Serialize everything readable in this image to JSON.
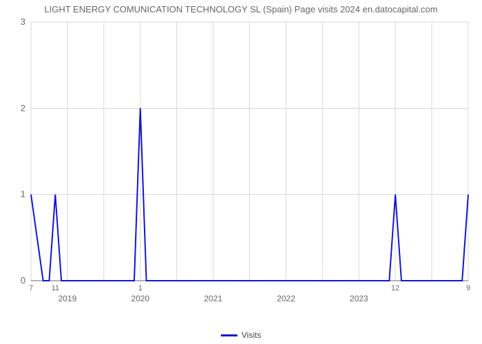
{
  "title": "LIGHT ENERGY COMUNICATION TECHNOLOGY SL (Spain) Page visits 2024 en.datocapital.com",
  "chart": {
    "type": "line",
    "background_color": "#ffffff",
    "grid_color": "#d8d8d8",
    "axis_color": "#666666",
    "series_color": "#1414d2",
    "line_width": 2,
    "ylim": [
      0,
      3
    ],
    "yticks": [
      0,
      1,
      2,
      3
    ],
    "xlim": [
      0,
      72
    ],
    "grid_v_count": 12,
    "minor_xticks": [
      {
        "pos": 0,
        "label": "7"
      },
      {
        "pos": 4,
        "label": "11"
      },
      {
        "pos": 18,
        "label": "1"
      },
      {
        "pos": 60,
        "label": "12"
      },
      {
        "pos": 72,
        "label": "9"
      }
    ],
    "major_xticks": [
      {
        "pos": 6,
        "label": "2019"
      },
      {
        "pos": 18,
        "label": "2020"
      },
      {
        "pos": 30,
        "label": "2021"
      },
      {
        "pos": 42,
        "label": "2022"
      },
      {
        "pos": 54,
        "label": "2023"
      }
    ],
    "points": [
      {
        "x": 0,
        "y": 1
      },
      {
        "x": 2,
        "y": 0
      },
      {
        "x": 3,
        "y": 0
      },
      {
        "x": 4,
        "y": 1
      },
      {
        "x": 5,
        "y": 0
      },
      {
        "x": 17,
        "y": 0
      },
      {
        "x": 18,
        "y": 2
      },
      {
        "x": 19,
        "y": 0
      },
      {
        "x": 59,
        "y": 0
      },
      {
        "x": 60,
        "y": 1
      },
      {
        "x": 61,
        "y": 0
      },
      {
        "x": 71,
        "y": 0
      },
      {
        "x": 72,
        "y": 1
      }
    ]
  },
  "legend": {
    "swatch_color": "#1414d2",
    "label": "Visits"
  }
}
